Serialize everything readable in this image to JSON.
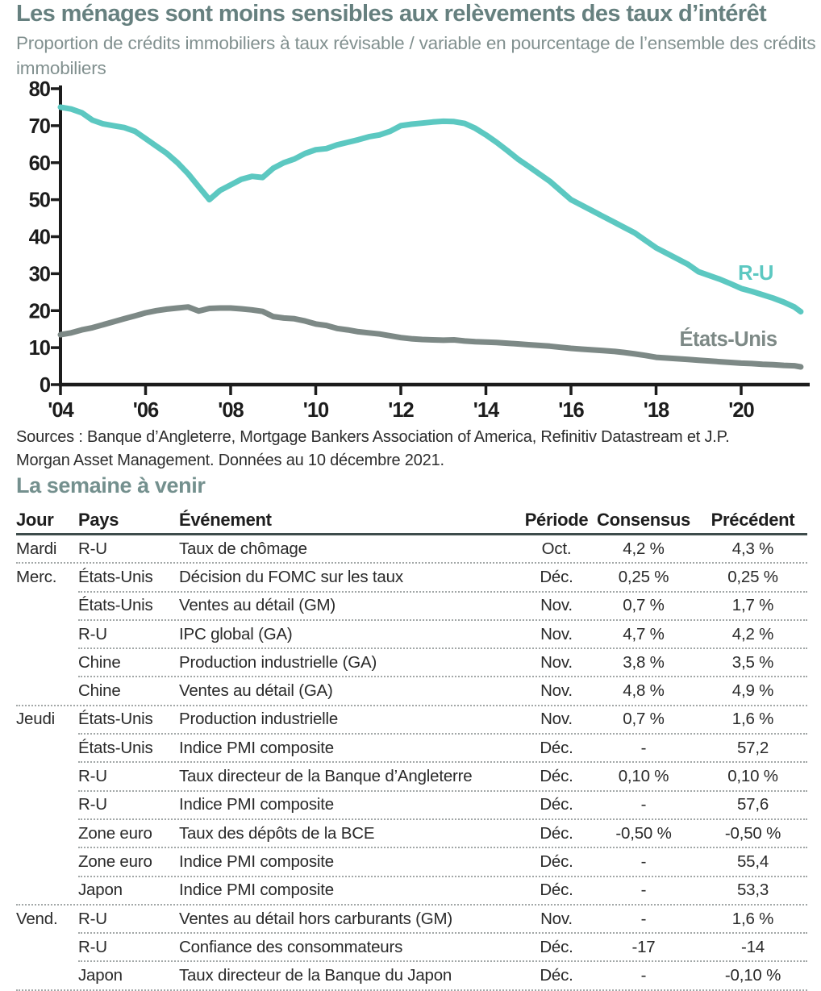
{
  "page": {
    "title": "Les ménages sont moins sensibles aux relèvements des taux d’intérêt",
    "subtitle": "Proportion de crédits immobiliers à taux révisable / variable en pourcentage de l’ensemble des crédits immobiliers",
    "sources_line1": "Sources : Banque d’Angleterre, Mortgage Bankers Association of America, Refinitiv Datastream et J.P.",
    "sources_line2": "Morgan Asset Management. Données au 10 décembre 2021.",
    "section_heading": "La semaine à venir"
  },
  "colors": {
    "title": "#66807f",
    "subtitle": "#81908f",
    "axis": "#1c1c1c",
    "uk_line": "#5cc8c1",
    "us_line": "#7d8986",
    "header_rule": "#3e4c4b",
    "row_separator": "#a2a7a7"
  },
  "chart_data": {
    "type": "line",
    "title": "Les ménages sont moins sensibles aux relèvements des taux d’intérêt",
    "subtitle": "Proportion de crédits immobiliers à taux révisable / variable en pourcentage de l’ensemble des crédits immobiliers",
    "xlabel": "",
    "ylabel": "",
    "grid": false,
    "legend_position": "inline-end-labels",
    "ylim": [
      0,
      80
    ],
    "xlim": [
      2004,
      2021.9
    ],
    "yticks": [
      0,
      10,
      20,
      30,
      40,
      50,
      60,
      70,
      80
    ],
    "xticks": [
      2004,
      2006,
      2008,
      2010,
      2012,
      2014,
      2016,
      2018,
      2020
    ],
    "xtick_labels": [
      "'04",
      "'06",
      "'08",
      "'10",
      "'12",
      "'14",
      "'16",
      "'18",
      "'20"
    ],
    "x": [
      2004,
      2004.25,
      2004.5,
      2004.75,
      2005,
      2005.25,
      2005.5,
      2005.75,
      2006,
      2006.25,
      2006.5,
      2006.75,
      2007,
      2007.25,
      2007.5,
      2007.75,
      2008,
      2008.25,
      2008.5,
      2008.75,
      2009,
      2009.25,
      2009.5,
      2009.75,
      2010,
      2010.25,
      2010.5,
      2010.75,
      2011,
      2011.25,
      2011.5,
      2011.75,
      2012,
      2012.25,
      2012.5,
      2012.75,
      2013,
      2013.25,
      2013.5,
      2013.75,
      2014,
      2014.25,
      2014.5,
      2014.75,
      2015,
      2015.25,
      2015.5,
      2015.75,
      2016,
      2016.25,
      2016.5,
      2016.75,
      2017,
      2017.25,
      2017.5,
      2017.75,
      2018,
      2018.25,
      2018.5,
      2018.75,
      2019,
      2019.25,
      2019.5,
      2019.75,
      2020,
      2020.25,
      2020.5,
      2020.75,
      2021,
      2021.25,
      2021.4
    ],
    "series": [
      {
        "name": "R-U",
        "color": "#5cc8c1",
        "values": [
          75,
          74.5,
          73.5,
          71.5,
          70.5,
          70,
          69.5,
          68.5,
          66.5,
          64.5,
          62.5,
          60,
          57,
          53.5,
          50,
          52.5,
          54,
          55.5,
          56.3,
          56,
          58.5,
          60,
          61,
          62.5,
          63.5,
          63.8,
          64.8,
          65.5,
          66.2,
          67,
          67.5,
          68.5,
          70,
          70.4,
          70.7,
          71,
          71.2,
          71.1,
          70.6,
          69.3,
          67.5,
          65.5,
          63.3,
          61,
          59,
          57,
          55,
          52.5,
          50,
          48.5,
          47,
          45.5,
          44,
          42.5,
          41,
          39,
          37,
          35.5,
          34,
          32.5,
          30.5,
          29.5,
          28.5,
          27.3,
          26,
          25.2,
          24.3,
          23.4,
          22.3,
          21,
          19.7
        ]
      },
      {
        "name": "États-Unis",
        "color": "#7d8986",
        "values": [
          13.5,
          14,
          14.8,
          15.4,
          16.2,
          17,
          17.8,
          18.6,
          19.4,
          20,
          20.4,
          20.7,
          21,
          19.9,
          20.6,
          20.7,
          20.7,
          20.5,
          20.2,
          19.8,
          18.4,
          18,
          17.8,
          17.2,
          16.4,
          16,
          15.2,
          14.8,
          14.3,
          14,
          13.7,
          13.2,
          12.7,
          12.4,
          12.2,
          12.1,
          12,
          12.1,
          11.8,
          11.6,
          11.5,
          11.4,
          11.2,
          11,
          10.8,
          10.6,
          10.4,
          10.1,
          9.8,
          9.6,
          9.4,
          9.2,
          9,
          8.7,
          8.3,
          7.9,
          7.4,
          7.2,
          7,
          6.8,
          6.6,
          6.4,
          6.2,
          6,
          5.8,
          5.7,
          5.5,
          5.4,
          5.2,
          5.1,
          4.8
        ]
      }
    ]
  },
  "table": {
    "columns": [
      "Jour",
      "Pays",
      "Événement",
      "Période",
      "Consensus",
      "Précédent"
    ],
    "rows": [
      {
        "jour": "Mardi",
        "pays": "R-U",
        "evenement": "Taux de chômage",
        "periode": "Oct.",
        "consensus": "4,2 %",
        "precedent": "4,3 %"
      },
      {
        "jour": "Merc.",
        "pays": "États-Unis",
        "evenement": "Décision du FOMC sur les taux",
        "periode": "Déc.",
        "consensus": "0,25 %",
        "precedent": "0,25 %"
      },
      {
        "jour": "",
        "pays": "États-Unis",
        "evenement": "Ventes au détail (GM)",
        "periode": "Nov.",
        "consensus": "0,7 %",
        "precedent": "1,7 %"
      },
      {
        "jour": "",
        "pays": "R-U",
        "evenement": "IPC global (GA)",
        "periode": "Nov.",
        "consensus": "4,7 %",
        "precedent": "4,2 %"
      },
      {
        "jour": "",
        "pays": "Chine",
        "evenement": "Production industrielle (GA)",
        "periode": "Nov.",
        "consensus": "3,8 %",
        "precedent": "3,5 %"
      },
      {
        "jour": "",
        "pays": "Chine",
        "evenement": "Ventes au détail (GA)",
        "periode": "Nov.",
        "consensus": "4,8 %",
        "precedent": "4,9 %"
      },
      {
        "jour": "Jeudi",
        "pays": "États-Unis",
        "evenement": "Production industrielle",
        "periode": "Nov.",
        "consensus": "0,7 %",
        "precedent": "1,6 %"
      },
      {
        "jour": "",
        "pays": "États-Unis",
        "evenement": "Indice PMI composite",
        "periode": "Déc.",
        "consensus": "-",
        "precedent": "57,2"
      },
      {
        "jour": "",
        "pays": "R-U",
        "evenement": "Taux directeur de la Banque d’Angleterre",
        "periode": "Déc.",
        "consensus": "0,10 %",
        "precedent": "0,10 %"
      },
      {
        "jour": "",
        "pays": "R-U",
        "evenement": "Indice PMI composite",
        "periode": "Déc.",
        "consensus": "-",
        "precedent": "57,6"
      },
      {
        "jour": "",
        "pays": "Zone euro",
        "evenement": "Taux des dépôts de la BCE",
        "periode": "Déc.",
        "consensus": "-0,50 %",
        "precedent": "-0,50 %"
      },
      {
        "jour": "",
        "pays": "Zone euro",
        "evenement": "Indice PMI composite",
        "periode": "Déc.",
        "consensus": "-",
        "precedent": "55,4"
      },
      {
        "jour": "",
        "pays": "Japon",
        "evenement": "Indice PMI composite",
        "periode": "Déc.",
        "consensus": "-",
        "precedent": "53,3"
      },
      {
        "jour": "Vend.",
        "pays": "R-U",
        "evenement": "Ventes au détail hors carburants (GM)",
        "periode": "Nov.",
        "consensus": "-",
        "precedent": "1,6 %"
      },
      {
        "jour": "",
        "pays": "R-U",
        "evenement": "Confiance des consommateurs",
        "periode": "Déc.",
        "consensus": "-17",
        "precedent": "-14"
      },
      {
        "jour": "",
        "pays": "Japon",
        "evenement": "Taux directeur de la Banque du Japon",
        "periode": "Déc.",
        "consensus": "-",
        "precedent": "-0,10 %"
      }
    ]
  }
}
